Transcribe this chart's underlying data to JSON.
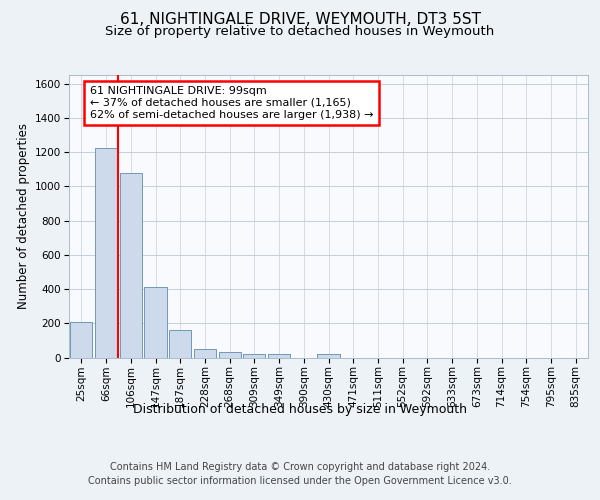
{
  "title": "61, NIGHTINGALE DRIVE, WEYMOUTH, DT3 5ST",
  "subtitle": "Size of property relative to detached houses in Weymouth",
  "xlabel": "Distribution of detached houses by size in Weymouth",
  "ylabel": "Number of detached properties",
  "footer_line1": "Contains HM Land Registry data © Crown copyright and database right 2024.",
  "footer_line2": "Contains public sector information licensed under the Open Government Licence v3.0.",
  "annotation_line1": "61 NIGHTINGALE DRIVE: 99sqm",
  "annotation_line2": "← 37% of detached houses are smaller (1,165)",
  "annotation_line3": "62% of semi-detached houses are larger (1,938) →",
  "bar_labels": [
    "25sqm",
    "66sqm",
    "106sqm",
    "147sqm",
    "187sqm",
    "228sqm",
    "268sqm",
    "309sqm",
    "349sqm",
    "390sqm",
    "430sqm",
    "471sqm",
    "511sqm",
    "552sqm",
    "592sqm",
    "633sqm",
    "673sqm",
    "714sqm",
    "754sqm",
    "795sqm",
    "835sqm"
  ],
  "bar_values": [
    205,
    1225,
    1075,
    410,
    160,
    52,
    32,
    20,
    20,
    0,
    20,
    0,
    0,
    0,
    0,
    0,
    0,
    0,
    0,
    0,
    0
  ],
  "bar_color": "#cddaeb",
  "bar_edge_color": "#7098b8",
  "red_line_x": 1.5,
  "ylim": [
    0,
    1650
  ],
  "yticks": [
    0,
    200,
    400,
    600,
    800,
    1000,
    1200,
    1400,
    1600
  ],
  "background_color": "#edf2f7",
  "plot_background": "#f8fafd",
  "grid_color": "#c5cfe0",
  "title_fontsize": 11,
  "subtitle_fontsize": 9.5,
  "xlabel_fontsize": 9,
  "ylabel_fontsize": 8.5,
  "tick_fontsize": 7.5,
  "annotation_fontsize": 8,
  "footer_fontsize": 7
}
